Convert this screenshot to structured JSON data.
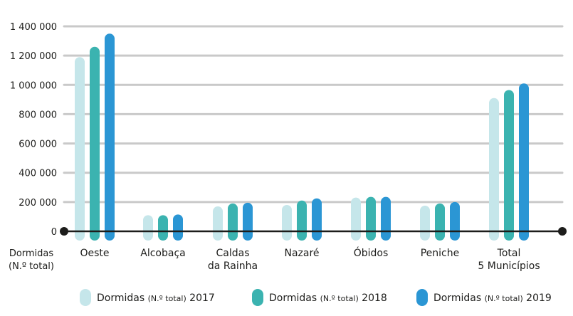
{
  "chart_data": {
    "type": "bar",
    "title": "",
    "xlabel": "",
    "ylabel_lines": [
      "Dormidas",
      "(N.º total)"
    ],
    "categories": [
      [
        "Oeste"
      ],
      [
        "Alcobaça"
      ],
      [
        "Caldas",
        "da Rainha"
      ],
      [
        "Nazaré"
      ],
      [
        "Óbidos"
      ],
      [
        "Peniche"
      ],
      [
        "Total",
        "5 Municípios"
      ]
    ],
    "series": [
      {
        "name": "Dormidas",
        "name_small": "(N.º total)",
        "year": "2017",
        "color": "#c5e6ea",
        "values": [
          1190000,
          110000,
          170000,
          180000,
          230000,
          175000,
          910000
        ]
      },
      {
        "name": "Dormidas",
        "name_small": "(N.º total)",
        "year": "2018",
        "color": "#3bb3b0",
        "values": [
          1260000,
          110000,
          190000,
          210000,
          235000,
          190000,
          965000
        ]
      },
      {
        "name": "Dormidas",
        "name_small": "(N.º total)",
        "year": "2019",
        "color": "#2b96d4",
        "values": [
          1350000,
          115000,
          195000,
          225000,
          235000,
          200000,
          1010000
        ]
      }
    ],
    "ylim": [
      0,
      1400000
    ],
    "yticks": [
      0,
      200000,
      400000,
      600000,
      800000,
      1000000,
      1200000,
      1400000
    ],
    "ytick_labels": [
      "0",
      "200 000",
      "400 000",
      "600 000",
      "800 000",
      "1 000 000",
      "1 200 000",
      "1 400 000"
    ],
    "grid": true,
    "legend_position": "bottom",
    "colors": {
      "grid": "#c9c9c9",
      "axis": "#1d1d1b"
    }
  }
}
